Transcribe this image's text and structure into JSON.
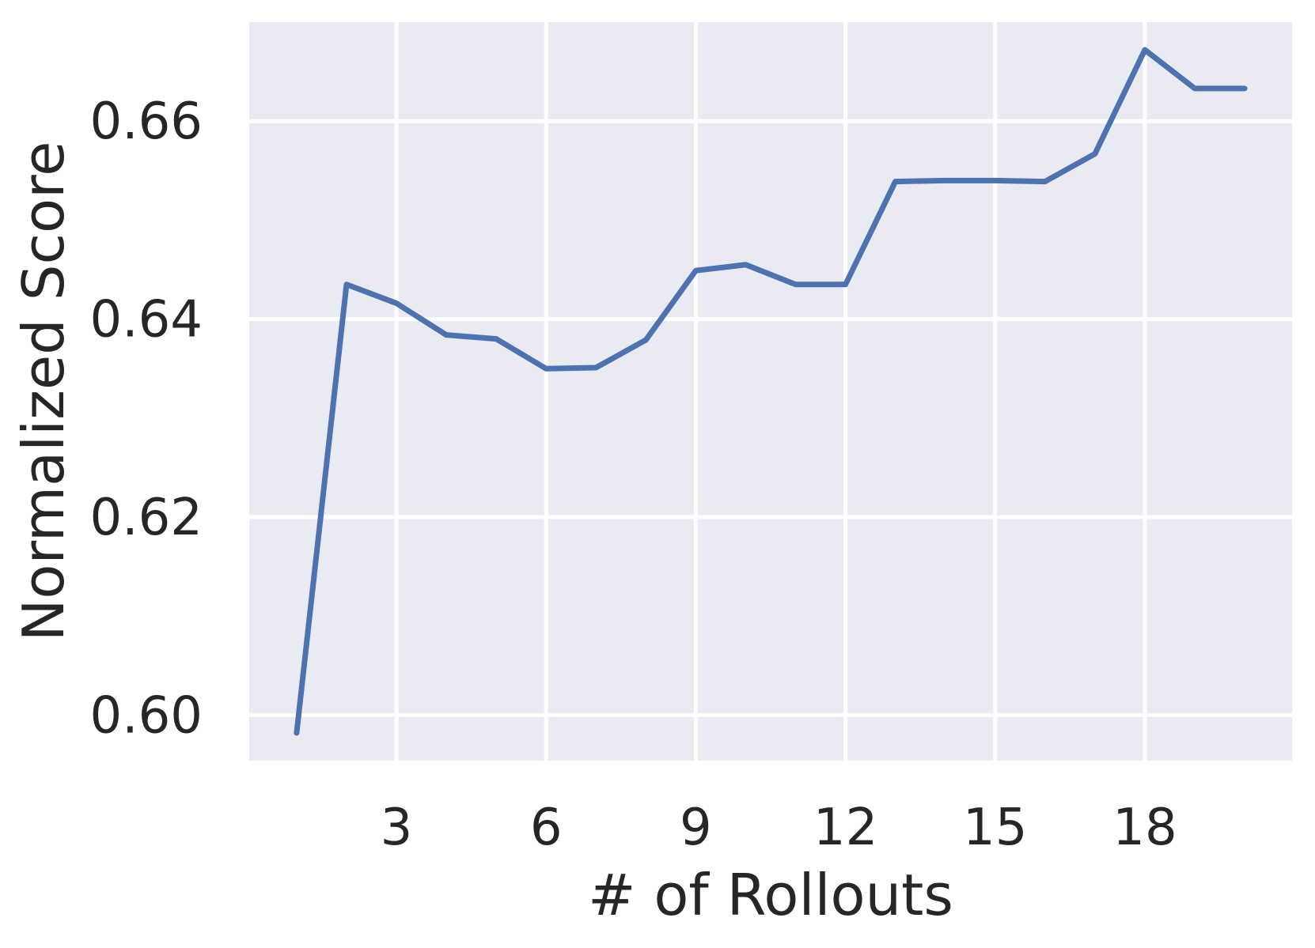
{
  "chart_data": {
    "type": "line",
    "xlabel": "# of Rollouts",
    "ylabel": "Normalized Score",
    "x": [
      1,
      2,
      3,
      4,
      5,
      6,
      7,
      8,
      9,
      10,
      11,
      12,
      13,
      14,
      15,
      16,
      17,
      18,
      19,
      20
    ],
    "series": [
      {
        "values": [
          0.5982,
          0.6435,
          0.6416,
          0.6384,
          0.638,
          0.635,
          0.6351,
          0.6379,
          0.6449,
          0.6455,
          0.6435,
          0.6435,
          0.6539,
          0.654,
          0.654,
          0.6539,
          0.6567,
          0.6672,
          0.6633,
          0.6633
        ],
        "color": "#4c72b0"
      }
    ],
    "xticks": [
      "3",
      "6",
      "9",
      "12",
      "15",
      "18"
    ],
    "xtick_values": [
      3,
      6,
      9,
      12,
      15,
      18
    ],
    "yticks": [
      "0.60",
      "0.62",
      "0.64",
      "0.66"
    ],
    "ytick_values": [
      0.6,
      0.62,
      0.64,
      0.66
    ],
    "xlim": [
      0.05,
      20.95
    ],
    "ylim": [
      0.5954,
      0.67
    ],
    "grid": true,
    "background_color": "#eaeaf2",
    "grid_color": "#ffffff"
  }
}
